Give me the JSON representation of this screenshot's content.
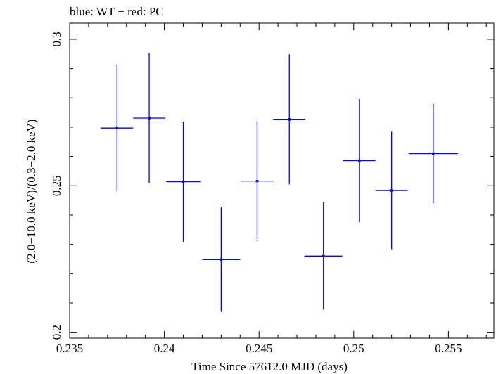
{
  "chart_data": {
    "type": "scatter",
    "title": "blue: WT − red: PC",
    "xlabel": "Time Since 57612.0 MJD (days)",
    "ylabel": "(2.0−10.0 keV)/(0.3−2.0 keV)",
    "xlim": [
      0.235,
      0.2574
    ],
    "ylim": [
      0.198,
      0.3055
    ],
    "x_ticks": [
      {
        "value": 0.235,
        "label": "0.235"
      },
      {
        "value": 0.24,
        "label": "0.24"
      },
      {
        "value": 0.245,
        "label": "0.245"
      },
      {
        "value": 0.25,
        "label": "0.25"
      },
      {
        "value": 0.255,
        "label": "0.255"
      }
    ],
    "y_ticks": [
      {
        "value": 0.2,
        "label": "0.2"
      },
      {
        "value": 0.25,
        "label": "0.25"
      },
      {
        "value": 0.3,
        "label": "0.3"
      }
    ],
    "series": [
      {
        "name": "WT",
        "color": "#0000ff",
        "points": [
          {
            "x": 0.2375,
            "xerr": 0.00085,
            "y": 0.2697,
            "yerr": 0.0216
          },
          {
            "x": 0.2392,
            "xerr": 0.00085,
            "y": 0.2731,
            "yerr": 0.0222
          },
          {
            "x": 0.241,
            "xerr": 0.0009,
            "y": 0.2514,
            "yerr": 0.0205
          },
          {
            "x": 0.243,
            "xerr": 0.001,
            "y": 0.2248,
            "yerr": 0.0178
          },
          {
            "x": 0.2449,
            "xerr": 0.00085,
            "y": 0.2516,
            "yerr": 0.0205
          },
          {
            "x": 0.2466,
            "xerr": 0.00085,
            "y": 0.2727,
            "yerr": 0.0222
          },
          {
            "x": 0.2484,
            "xerr": 0.001,
            "y": 0.226,
            "yerr": 0.0183
          },
          {
            "x": 0.2503,
            "xerr": 0.00085,
            "y": 0.2586,
            "yerr": 0.021
          },
          {
            "x": 0.252,
            "xerr": 0.00085,
            "y": 0.2484,
            "yerr": 0.0201
          },
          {
            "x": 0.2542,
            "xerr": 0.0013,
            "y": 0.261,
            "yerr": 0.017
          }
        ]
      }
    ]
  }
}
